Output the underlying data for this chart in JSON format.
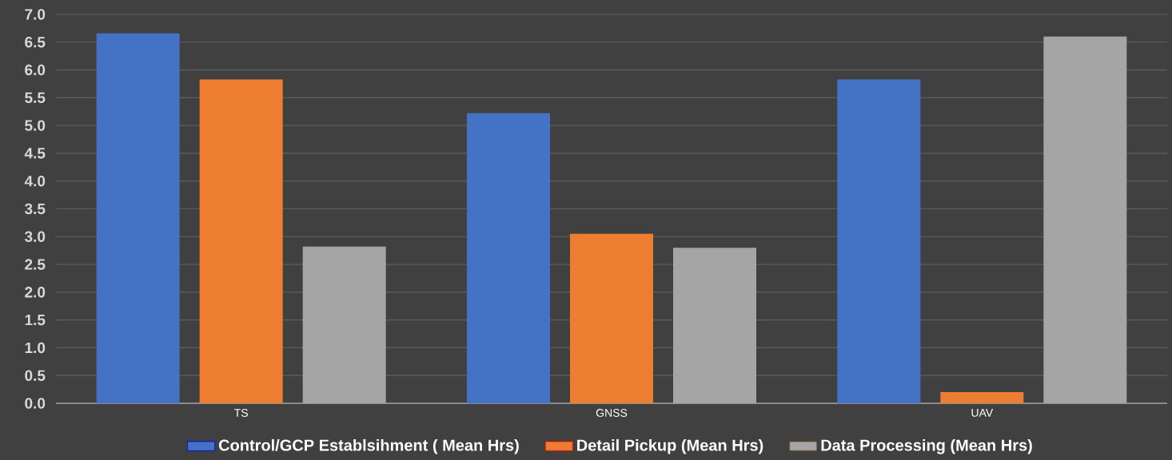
{
  "chart_data": {
    "type": "bar",
    "categories": [
      "TS",
      "GNSS",
      "UAV"
    ],
    "series": [
      {
        "name": "Control/GCP Establsihment ( Mean Hrs)",
        "color": "#4472c4",
        "values": [
          6.66,
          5.22,
          5.83
        ]
      },
      {
        "name": "Detail Pickup (Mean Hrs)",
        "color": "#ed7d31",
        "values": [
          5.83,
          3.05,
          0.2
        ]
      },
      {
        "name": "Data Processing (Mean Hrs)",
        "color": "#a5a5a5",
        "values": [
          2.82,
          2.8,
          6.6
        ]
      }
    ],
    "ylim": [
      0,
      7
    ],
    "yticks": [
      {
        "value": 0,
        "label": "0.0"
      },
      {
        "value": 0.5,
        "label": "0.5"
      },
      {
        "value": 1,
        "label": "1.0"
      },
      {
        "value": 1.5,
        "label": "1.5"
      },
      {
        "value": 2,
        "label": "2.0"
      },
      {
        "value": 2.5,
        "label": "2.5"
      },
      {
        "value": 3,
        "label": "3.0"
      },
      {
        "value": 3.5,
        "label": "3.5"
      },
      {
        "value": 4,
        "label": "4.0"
      },
      {
        "value": 4.5,
        "label": "4.5"
      },
      {
        "value": 5,
        "label": "5.0"
      },
      {
        "value": 5.5,
        "label": "5.5"
      },
      {
        "value": 6,
        "label": "6.0"
      },
      {
        "value": 6.5,
        "label": "6.5"
      },
      {
        "value": 7,
        "label": "7.0"
      }
    ],
    "grid": "y",
    "legend": "bottom"
  }
}
